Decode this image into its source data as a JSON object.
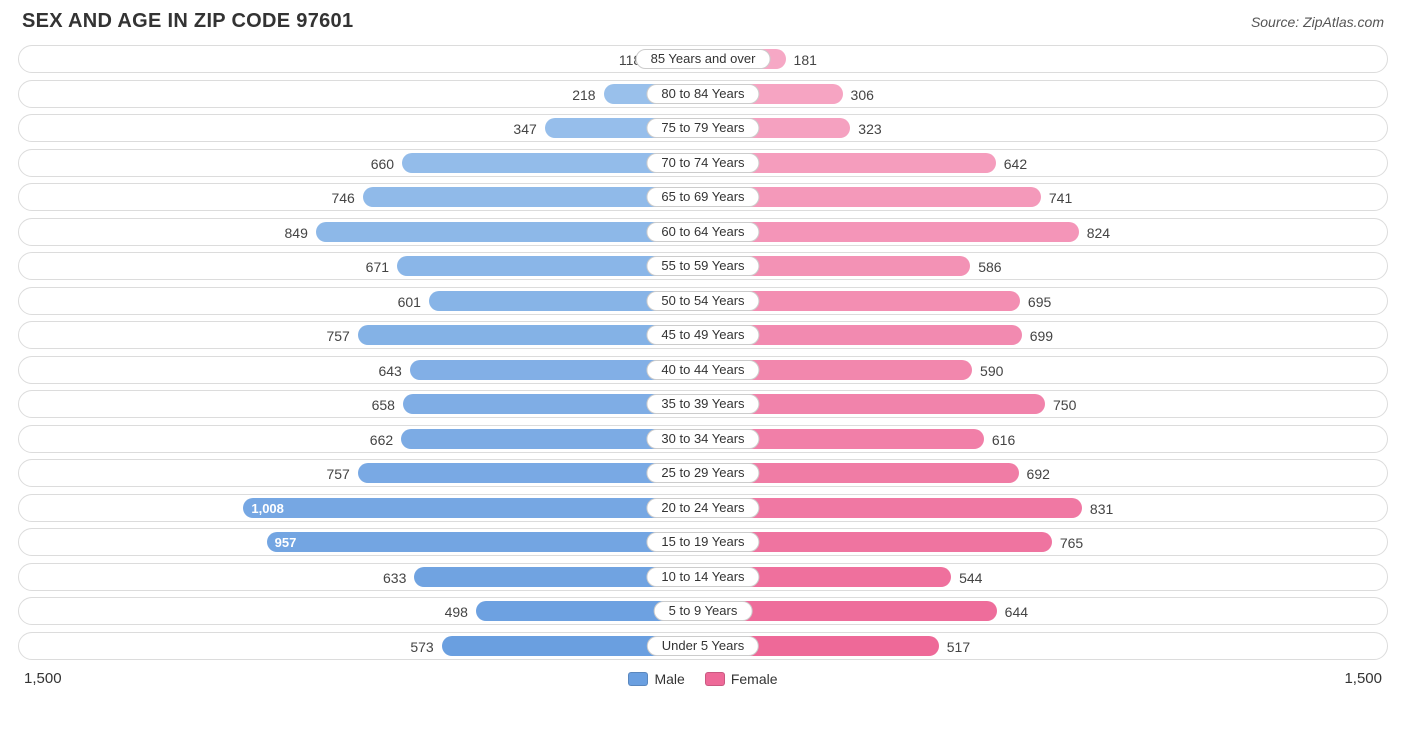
{
  "header": {
    "title": "SEX AND AGE IN ZIP CODE 97601",
    "source": "Source: ZipAtlas.com"
  },
  "chart": {
    "type": "population-pyramid",
    "axis_max": 1500,
    "axis_left_label": "1,500",
    "axis_right_label": "1,500",
    "track_border_color": "#dcdcdc",
    "track_bg": "#ffffff",
    "male_fill_top": "#9cc2ec",
    "male_fill_bottom": "#6a9fe0",
    "female_fill_top": "#f6a8c5",
    "female_fill_bottom": "#ee6998",
    "male_fill": "#6a9fe0",
    "female_fill": "#ee6998",
    "value_label_color": "#444444",
    "value_label_fontsize": 14,
    "category_label_fontsize": 13,
    "inside_label_threshold": 900,
    "rows": [
      {
        "category": "85 Years and over",
        "male": 118,
        "female": 181,
        "male_text": "118",
        "female_text": "181"
      },
      {
        "category": "80 to 84 Years",
        "male": 218,
        "female": 306,
        "male_text": "218",
        "female_text": "306"
      },
      {
        "category": "75 to 79 Years",
        "male": 347,
        "female": 323,
        "male_text": "347",
        "female_text": "323"
      },
      {
        "category": "70 to 74 Years",
        "male": 660,
        "female": 642,
        "male_text": "660",
        "female_text": "642"
      },
      {
        "category": "65 to 69 Years",
        "male": 746,
        "female": 741,
        "male_text": "746",
        "female_text": "741"
      },
      {
        "category": "60 to 64 Years",
        "male": 849,
        "female": 824,
        "male_text": "849",
        "female_text": "824"
      },
      {
        "category": "55 to 59 Years",
        "male": 671,
        "female": 586,
        "male_text": "671",
        "female_text": "586"
      },
      {
        "category": "50 to 54 Years",
        "male": 601,
        "female": 695,
        "male_text": "601",
        "female_text": "695"
      },
      {
        "category": "45 to 49 Years",
        "male": 757,
        "female": 699,
        "male_text": "757",
        "female_text": "699"
      },
      {
        "category": "40 to 44 Years",
        "male": 643,
        "female": 590,
        "male_text": "643",
        "female_text": "590"
      },
      {
        "category": "35 to 39 Years",
        "male": 658,
        "female": 750,
        "male_text": "658",
        "female_text": "750"
      },
      {
        "category": "30 to 34 Years",
        "male": 662,
        "female": 616,
        "male_text": "662",
        "female_text": "616"
      },
      {
        "category": "25 to 29 Years",
        "male": 757,
        "female": 692,
        "male_text": "757",
        "female_text": "692"
      },
      {
        "category": "20 to 24 Years",
        "male": 1008,
        "female": 831,
        "male_text": "1,008",
        "female_text": "831"
      },
      {
        "category": "15 to 19 Years",
        "male": 957,
        "female": 765,
        "male_text": "957",
        "female_text": "765"
      },
      {
        "category": "10 to 14 Years",
        "male": 633,
        "female": 544,
        "male_text": "633",
        "female_text": "544"
      },
      {
        "category": "5 to 9 Years",
        "male": 498,
        "female": 644,
        "male_text": "498",
        "female_text": "644"
      },
      {
        "category": "Under 5 Years",
        "male": 573,
        "female": 517,
        "male_text": "573",
        "female_text": "517"
      }
    ]
  },
  "legend": {
    "male_label": "Male",
    "female_label": "Female",
    "male_swatch": "#6a9fe0",
    "female_swatch": "#ee6998"
  }
}
